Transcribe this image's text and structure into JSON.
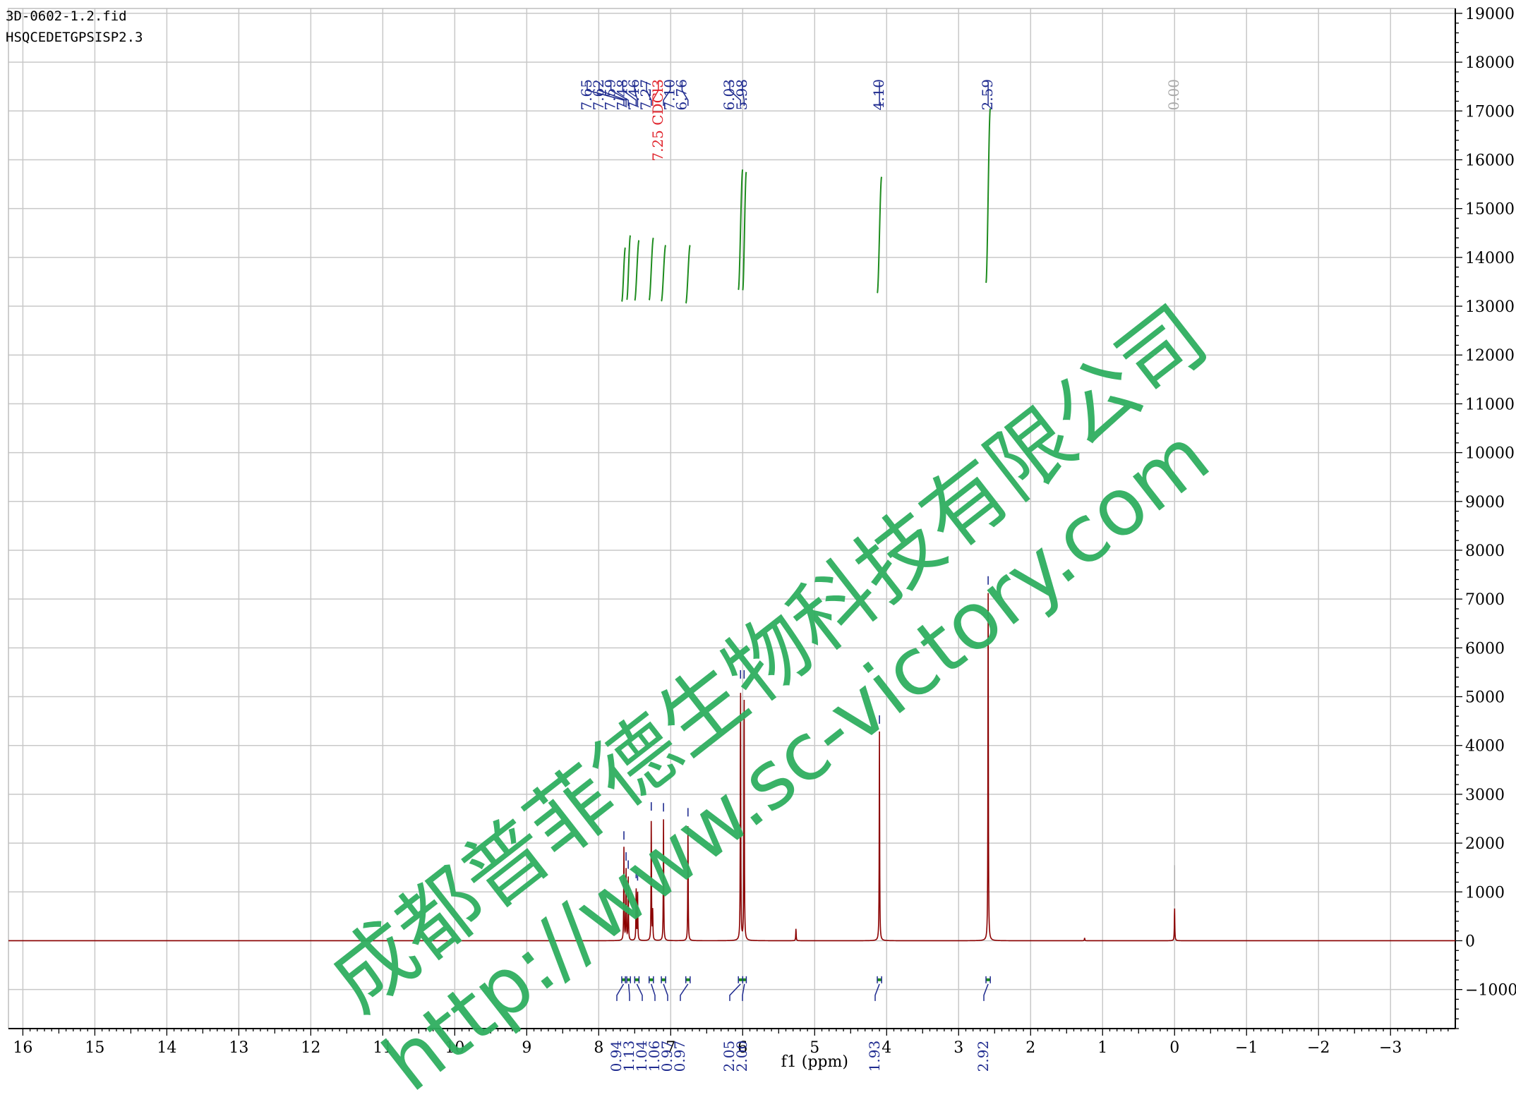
{
  "header": {
    "file_name": "3D-0602-1.2.fid",
    "pulse_program": "HSQCEDETGPSISP2.3"
  },
  "watermark": {
    "company": "成都普菲德生物科技有限公司",
    "url": "http://www.sc-victory.com",
    "color": "#2fae5f"
  },
  "colors": {
    "spectrum": "#8b0000",
    "integral_curve": "#1e8c1e",
    "peak_label": "#1f2b8f",
    "solvent_label": "#e0242c",
    "reference_label": "#a9a9a9",
    "grid": "#c8c8c8"
  },
  "chart_data": {
    "type": "line",
    "title": "",
    "xlabel": "f1 (ppm)",
    "ylabel": "",
    "xlim": [
      16.2,
      -3.9
    ],
    "ylim": [
      -1800,
      19100
    ],
    "x_reversed": true,
    "grid": true,
    "x_ticks": [
      16,
      15,
      14,
      13,
      12,
      11,
      10,
      9,
      8,
      7,
      6,
      5,
      4,
      3,
      2,
      1,
      0,
      -1,
      -2,
      -3
    ],
    "x_tick_labels": [
      "16",
      "15",
      "14",
      "13",
      "12",
      "11",
      "10",
      "9",
      "8",
      "7",
      "6",
      "5",
      "4",
      "3",
      "2",
      "1",
      "0",
      "−1",
      "−2",
      "−3"
    ],
    "y_ticks": [
      -1000,
      0,
      1000,
      2000,
      3000,
      4000,
      5000,
      6000,
      7000,
      8000,
      9000,
      10000,
      11000,
      12000,
      13000,
      14000,
      15000,
      16000,
      17000,
      18000,
      19000
    ],
    "y_tick_labels": [
      "−1000",
      "0",
      "1000",
      "2000",
      "3000",
      "4000",
      "5000",
      "6000",
      "7000",
      "8000",
      "9000",
      "10000",
      "11000",
      "12000",
      "13000",
      "14000",
      "15000",
      "16000",
      "17000",
      "18000",
      "19000"
    ],
    "series": [
      {
        "peaks": [
          {
            "ppm": 7.65,
            "height": 1900
          },
          {
            "ppm": 7.62,
            "height": 1450
          },
          {
            "ppm": 7.59,
            "height": 1300
          },
          {
            "ppm": 7.48,
            "height": 1100
          },
          {
            "ppm": 7.46,
            "height": 1050
          },
          {
            "ppm": 7.27,
            "height": 2500
          },
          {
            "ppm": 7.25,
            "height": 600
          },
          {
            "ppm": 7.1,
            "height": 2500
          },
          {
            "ppm": 6.76,
            "height": 2400
          },
          {
            "ppm": 6.03,
            "height": 5200
          },
          {
            "ppm": 5.98,
            "height": 5200
          },
          {
            "ppm": 5.26,
            "height": 250
          },
          {
            "ppm": 4.1,
            "height": 4300
          },
          {
            "ppm": 2.59,
            "height": 7150
          },
          {
            "ppm": 1.25,
            "height": 60
          },
          {
            "ppm": 0.0,
            "height": 680
          }
        ]
      }
    ],
    "peak_labels": [
      {
        "text": "7.65",
        "ppm": 7.65,
        "kind": "peak"
      },
      {
        "text": "7.62",
        "ppm": 7.62,
        "kind": "peak"
      },
      {
        "text": "7.59",
        "ppm": 7.59,
        "kind": "peak"
      },
      {
        "text": "7.48",
        "ppm": 7.48,
        "kind": "peak"
      },
      {
        "text": "7.46",
        "ppm": 7.46,
        "kind": "peak"
      },
      {
        "text": "7.27",
        "ppm": 7.27,
        "kind": "peak"
      },
      {
        "text": "7.25 CDCl3",
        "ppm": 7.25,
        "kind": "solvent"
      },
      {
        "text": "7.10",
        "ppm": 7.1,
        "kind": "peak"
      },
      {
        "text": "6.76",
        "ppm": 6.76,
        "kind": "peak"
      },
      {
        "text": "6.03",
        "ppm": 6.03,
        "kind": "peak"
      },
      {
        "text": "5.98",
        "ppm": 5.98,
        "kind": "peak"
      },
      {
        "text": "4.10",
        "ppm": 4.1,
        "kind": "peak"
      },
      {
        "text": "2.59",
        "ppm": 2.59,
        "kind": "peak"
      },
      {
        "text": "0.00",
        "ppm": 0.0,
        "kind": "reference"
      }
    ],
    "integrals": [
      {
        "text": "0.94",
        "ppm": 7.65,
        "from": 7.68,
        "to": 7.63,
        "curve_bottom": 12900,
        "curve_top": 14200
      },
      {
        "text": "1.13",
        "ppm": 7.59,
        "from": 7.61,
        "to": 7.56,
        "curve_bottom": 12900,
        "curve_top": 14450
      },
      {
        "text": "1.04",
        "ppm": 7.47,
        "from": 7.5,
        "to": 7.44,
        "curve_bottom": 12900,
        "curve_top": 14350
      },
      {
        "text": "1.06",
        "ppm": 7.27,
        "from": 7.3,
        "to": 7.24,
        "curve_bottom": 12900,
        "curve_top": 14400
      },
      {
        "text": "0.97",
        "ppm": 7.1,
        "from": 7.13,
        "to": 7.07,
        "curve_bottom": 12900,
        "curve_top": 14250
      },
      {
        "text": "0.97",
        "ppm": 6.76,
        "from": 6.79,
        "to": 6.73,
        "curve_bottom": 12850,
        "curve_top": 14250
      },
      {
        "text": "2.05",
        "ppm": 6.03,
        "from": 6.06,
        "to": 6.0,
        "curve_bottom": 12900,
        "curve_top": 15800
      },
      {
        "text": "2.00",
        "ppm": 5.98,
        "from": 6.0,
        "to": 5.95,
        "curve_bottom": 12900,
        "curve_top": 15750
      },
      {
        "text": "1.93",
        "ppm": 4.1,
        "from": 4.13,
        "to": 4.07,
        "curve_bottom": 12850,
        "curve_top": 15650
      },
      {
        "text": "2.92",
        "ppm": 2.59,
        "from": 2.62,
        "to": 2.56,
        "curve_bottom": 12850,
        "curve_top": 17050
      }
    ]
  }
}
